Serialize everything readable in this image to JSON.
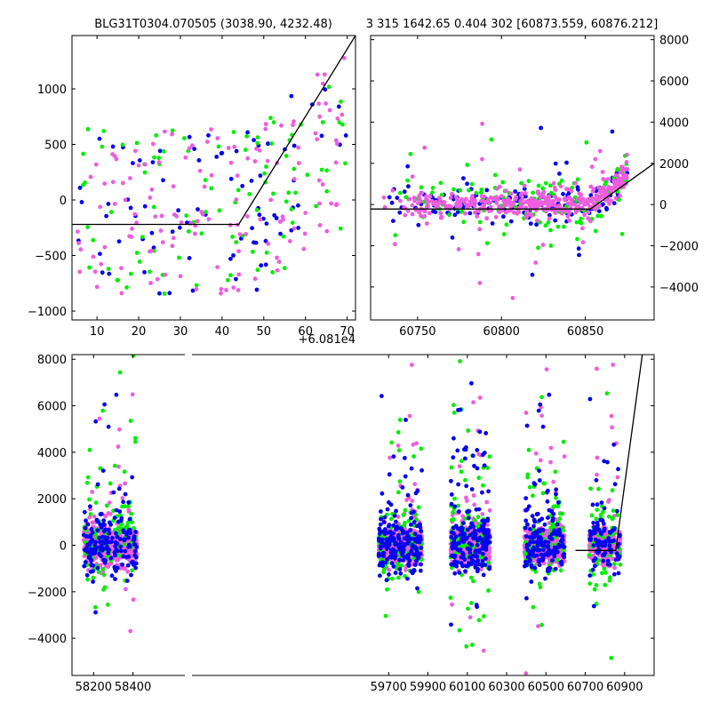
{
  "chart_data": [
    {
      "id": "top_left",
      "type": "scatter",
      "title": "BLG31T0304.070505 (3038.90, 4232.48)",
      "xlim": [
        4,
        72
      ],
      "ylim": [
        -1080,
        1480
      ],
      "x_ticks": [
        10,
        20,
        30,
        40,
        50,
        60,
        70
      ],
      "y_ticks": [
        -1000,
        -500,
        0,
        500,
        1000
      ],
      "x_offset_label": "+6.081e4",
      "model_line": {
        "x": [
          4,
          44,
          72
        ],
        "y": [
          -220,
          -220,
          1480
        ]
      },
      "series": [
        {
          "color": "#0000ee",
          "n": 85,
          "x_range": [
            5,
            70
          ],
          "spread": 750,
          "ramp": 14
        },
        {
          "color": "#00ee00",
          "n": 95,
          "x_range": [
            5,
            70
          ],
          "spread": 750,
          "ramp": 12
        },
        {
          "color": "#ee5ddd",
          "n": 140,
          "x_range": [
            5,
            70
          ],
          "spread": 750,
          "ramp": 14
        }
      ]
    },
    {
      "id": "top_right",
      "type": "scatter",
      "title": "3 315 1642.65 0.404 302 [60873.559, 60876.212]",
      "xlim": [
        60722,
        60891
      ],
      "ylim": [
        -5600,
        8200
      ],
      "x_ticks": [
        60750,
        60800,
        60850
      ],
      "y_ticks": [
        -4000,
        -2000,
        0,
        2000,
        4000,
        6000,
        8000
      ],
      "y_axis_side": "right",
      "model_line": {
        "x": [
          60722,
          60853,
          60891
        ],
        "y": [
          -220,
          -220,
          2000
        ]
      },
      "series": [
        {
          "color": "#0000ee",
          "n": 170,
          "x_range": [
            60728,
            60875
          ],
          "spread": 380,
          "ramp": 3
        },
        {
          "color": "#00ee00",
          "n": 130,
          "x_range": [
            60728,
            60875
          ],
          "spread": 700,
          "ramp": 3
        },
        {
          "color": "#ee5ddd",
          "n": 420,
          "x_range": [
            60728,
            60875
          ],
          "spread": 320,
          "ramp": 3
        }
      ]
    },
    {
      "id": "bottom",
      "type": "scatter",
      "title": "",
      "xlim": [
        58090,
        61050
      ],
      "ylim": [
        -5600,
        8200
      ],
      "x_ticks": [
        58200,
        58400,
        59700,
        59900,
        60100,
        60300,
        60500,
        60700,
        60900
      ],
      "y_ticks": [
        -4000,
        -2000,
        0,
        2000,
        4000,
        6000,
        8000
      ],
      "broken_x_axis": true,
      "model_line": {
        "x": [
          60650,
          60855,
          60990
        ],
        "y": [
          -220,
          -220,
          8200
        ]
      },
      "seasons": [
        {
          "x_range": [
            58150,
            58420
          ],
          "n_blue": 170,
          "n_green": 110,
          "n_pink": 520
        },
        {
          "x_range": [
            59650,
            59870
          ],
          "n_blue": 200,
          "n_green": 90,
          "n_pink": 520
        },
        {
          "x_range": [
            60015,
            60215
          ],
          "n_blue": 190,
          "n_green": 100,
          "n_pink": 520
        },
        {
          "x_range": [
            60390,
            60595
          ],
          "n_blue": 170,
          "n_green": 90,
          "n_pink": 460
        },
        {
          "x_range": [
            60720,
            60878
          ],
          "n_blue": 90,
          "n_green": 60,
          "n_pink": 260
        }
      ],
      "colors": {
        "blue": "#0000ee",
        "green": "#00ee00",
        "pink": "#ee5ddd"
      }
    }
  ]
}
